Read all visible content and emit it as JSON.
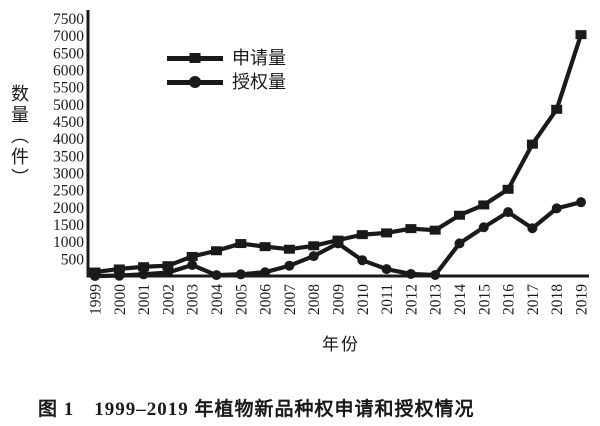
{
  "figure": {
    "caption": "图 1　1999–2019 年植物新品种权申请和授权情况"
  },
  "chart_data": {
    "type": "line",
    "title": "",
    "xlabel": "年份",
    "ylabel": "数量（件）",
    "ylim": [
      0,
      7500
    ],
    "y_ticks": [
      500,
      1000,
      1500,
      2000,
      2500,
      3000,
      3500,
      4000,
      4500,
      5000,
      5500,
      6000,
      6500,
      7000,
      7500
    ],
    "grid": false,
    "legend_position": "inside-upper-left",
    "line_color": "#1a1a1a",
    "background_color": "#ffffff",
    "categories": [
      "1999",
      "2000",
      "2001",
      "2002",
      "2003",
      "2004",
      "2005",
      "2006",
      "2007",
      "2008",
      "2009",
      "2010",
      "2011",
      "2012",
      "2013",
      "2014",
      "2015",
      "2016",
      "2017",
      "2018",
      "2019"
    ],
    "series": [
      {
        "name": "申请量",
        "marker": "square",
        "values": [
          115,
          205,
          270,
          300,
          570,
          735,
          945,
          855,
          780,
          880,
          1045,
          1205,
          1255,
          1380,
          1335,
          1770,
          2070,
          2525,
          3840,
          4855,
          7030
        ]
      },
      {
        "name": "授权量",
        "marker": "circle",
        "values": [
          0,
          10,
          50,
          100,
          320,
          25,
          50,
          110,
          300,
          580,
          950,
          460,
          200,
          60,
          30,
          950,
          1420,
          1860,
          1390,
          1970,
          2150
        ]
      }
    ]
  }
}
